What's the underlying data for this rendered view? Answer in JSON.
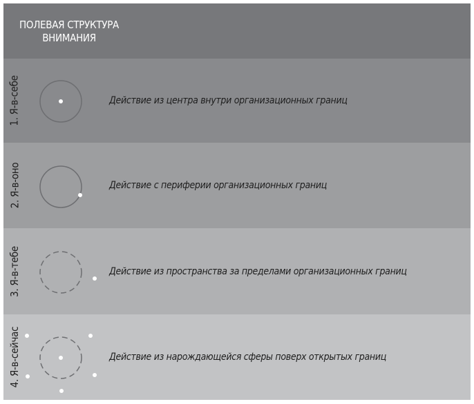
{
  "header": {
    "title_line1": "ПОЛЕВАЯ СТРУКТУРА",
    "title_line2": "ВНИМАНИЯ"
  },
  "rows": [
    {
      "label": "1. Я-в-себе",
      "description": "Действие из центра внутри организационных границ",
      "color": "#898a8d"
    },
    {
      "label": "2. Я-в-оно",
      "description": "Действие с периферии организационных границ",
      "color": "#9d9ea0"
    },
    {
      "label": "3. Я-в-тебе",
      "description": "Действие из пространства за пределами организационных границ",
      "color": "#b0b1b3"
    },
    {
      "label": "4. Я-в-сейчас",
      "description": "Действие из нарождающейся сферы поверх открытых границ",
      "color": "#c2c3c5"
    }
  ],
  "colors": {
    "header": "#77787b",
    "circle_stroke": "#6d6e71",
    "dot": "#ffffff"
  }
}
